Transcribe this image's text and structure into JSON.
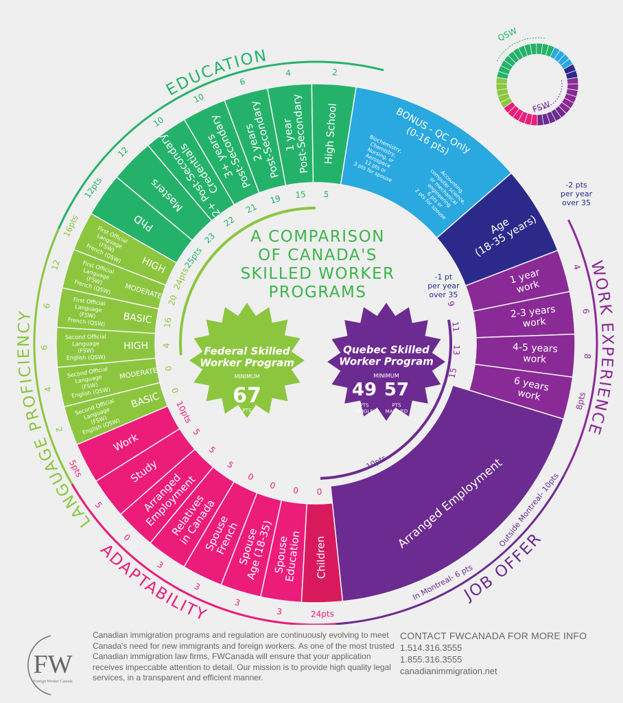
{
  "title": [
    "A COMPARISON",
    "OF CANADA'S",
    "SKILLED WORKER",
    "PROGRAMS"
  ],
  "colors": {
    "education": "#24b26b",
    "bonus": "#2aa8e0",
    "age": "#2b2a8a",
    "work": "#8a2a96",
    "job_offer": "#6c2b90",
    "adaptability": "#ec1c7b",
    "children": "#d81a5c",
    "language": "#8cc63f",
    "title": "#3cb54a"
  },
  "categories": {
    "education": "EDUCATION",
    "language": "LANGUAGE PROFICIENCY",
    "work": "WORK EXPERIENCE",
    "adaptability": "ADAPTABILITY",
    "job_offer": "JOB OFFER"
  },
  "education": {
    "segments": [
      {
        "label": [
          "PhD"
        ],
        "outer": "12pts",
        "inner": "25pts"
      },
      {
        "label": [
          "Masters"
        ],
        "outer": "12",
        "inner": "23"
      },
      {
        "label": [
          "2+ Post-Secondary",
          "Credentials"
        ],
        "outer": "10",
        "inner": "22"
      },
      {
        "label": [
          "3+ years",
          "Post-Secondary"
        ],
        "outer": "10",
        "inner": "21"
      },
      {
        "label": [
          "2 years",
          "Post-Secondary"
        ],
        "outer": "6",
        "inner": "19"
      },
      {
        "label": [
          "1 year",
          "Post-Secondary"
        ],
        "outer": "4",
        "inner": "15"
      },
      {
        "label": [
          "High School"
        ],
        "outer": "2",
        "inner": "5"
      }
    ]
  },
  "bonus": {
    "title": [
      "BONUS - QC Only",
      "(0-16 pts)"
    ],
    "left": [
      "Biochemistry,",
      "Chemistry,",
      "Nursing, or",
      "Aerospace",
      "12 pts or",
      "3 pts for spouse"
    ],
    "right": [
      "Accounting,",
      "computer science,",
      "or mechanical",
      "engineering",
      "6 pts or",
      "2 pts for spouse"
    ]
  },
  "age": {
    "label": [
      "Age",
      "(18-35 years)"
    ],
    "inner_note": [
      "-1 pt",
      "per year",
      "over 35"
    ],
    "outer_note": [
      "-2 pts",
      "per year",
      "over 35"
    ]
  },
  "work": {
    "segments": [
      {
        "label": [
          "1 year",
          "work"
        ],
        "inner": "9",
        "outer": "4"
      },
      {
        "label": [
          "2-3 years",
          "work"
        ],
        "inner": "11",
        "outer": "6"
      },
      {
        "label": [
          "4-5 years",
          "work"
        ],
        "inner": "13",
        "outer": "8"
      },
      {
        "label": [
          "6 years",
          "work"
        ],
        "inner": "15",
        "outer": "8pts"
      }
    ]
  },
  "job_offer": {
    "label": [
      "Arranged Employment"
    ],
    "inner": "10pts",
    "outer_montreal": "In Montreal- 6 pts",
    "outer_outside": "Outside Montreal- 10pts"
  },
  "adaptability": {
    "segments": [
      {
        "label": [
          "Work"
        ],
        "inner": "10pts",
        "outer": "5pts"
      },
      {
        "label": [
          "Study"
        ],
        "inner": "5",
        "outer": "5"
      },
      {
        "label": [
          "Arranged",
          "Employment"
        ],
        "inner": "5",
        "outer": "0"
      },
      {
        "label": [
          "Relatives",
          "in Canada"
        ],
        "inner": "5",
        "outer": "3"
      },
      {
        "label": [
          "Spouse",
          "French"
        ],
        "inner": "0",
        "outer": "3"
      },
      {
        "label": [
          "Spouse",
          "Age (18-35)"
        ],
        "inner": "0",
        "outer": "3"
      },
      {
        "label": [
          "Spouse",
          "Education"
        ],
        "inner": "0",
        "outer": "3"
      },
      {
        "label": [
          "Children"
        ],
        "inner": "0",
        "outer": "24pts"
      }
    ]
  },
  "language": {
    "segments": [
      {
        "level": "HIGH",
        "desc": [
          "First Official",
          "Language",
          "(FSW)",
          "French (QSW)"
        ],
        "inner": "24pts",
        "outer": "16pts"
      },
      {
        "level": "MODERATE",
        "desc": [
          "First Official",
          "Language",
          "(FSW)",
          "French (QSW)"
        ],
        "inner": "20",
        "outer": "12"
      },
      {
        "level": "BASIC",
        "desc": [
          "First Official",
          "Language",
          "(FSW)",
          "French (QSW)"
        ],
        "inner": "16",
        "outer": "6"
      },
      {
        "level": "HIGH",
        "desc": [
          "Second Official",
          "Language",
          "(FSW)",
          "English (QSW)"
        ],
        "inner": "4",
        "outer": "6"
      },
      {
        "level": "MODERATE",
        "desc": [
          "Second Official",
          "Language",
          "(FSW)",
          "English (QSW)"
        ],
        "inner": "0",
        "outer": "4"
      },
      {
        "level": "BASIC",
        "desc": [
          "Second Official",
          "Language",
          "(FSW)",
          "English (QSW)"
        ],
        "inner": "0",
        "outer": "2"
      }
    ]
  },
  "fsw_badge": {
    "name": [
      "Federal Skilled",
      "Worker Program"
    ],
    "minimum": "MINIMUM",
    "points": "67",
    "unit": "PTS"
  },
  "qsw_badge": {
    "name": [
      "Quebec Skilled",
      "Worker Program"
    ],
    "minimum": "MINIMUM",
    "single_points": "49",
    "single_label": [
      "PTS",
      "SINGLE"
    ],
    "married_points": "57",
    "married_label": [
      "PTS",
      "MARRIED"
    ]
  },
  "mini_donut": {
    "qsw": "QSW",
    "fsw": "FSW"
  },
  "footer": {
    "logo": {
      "letters": "FW",
      "name": "Foreign Worker Canada"
    },
    "description": "Canadian immigration programs and regulation are continuously evolving to meet Canada's need for new immigrants and foreign workers. As one of the most trusted Canadian immigration law firms, FWCanada will ensure that your application receives impeccable attention to detail. Our mission is to provide high quality legal services, in a transparent and efficient manner.",
    "contact_heading": "CONTACT FWCANADA FOR MORE INFO",
    "phone1": "1.514.316.3555",
    "phone2": "1.855.316.3555",
    "website": "canadianimmigration.net"
  }
}
